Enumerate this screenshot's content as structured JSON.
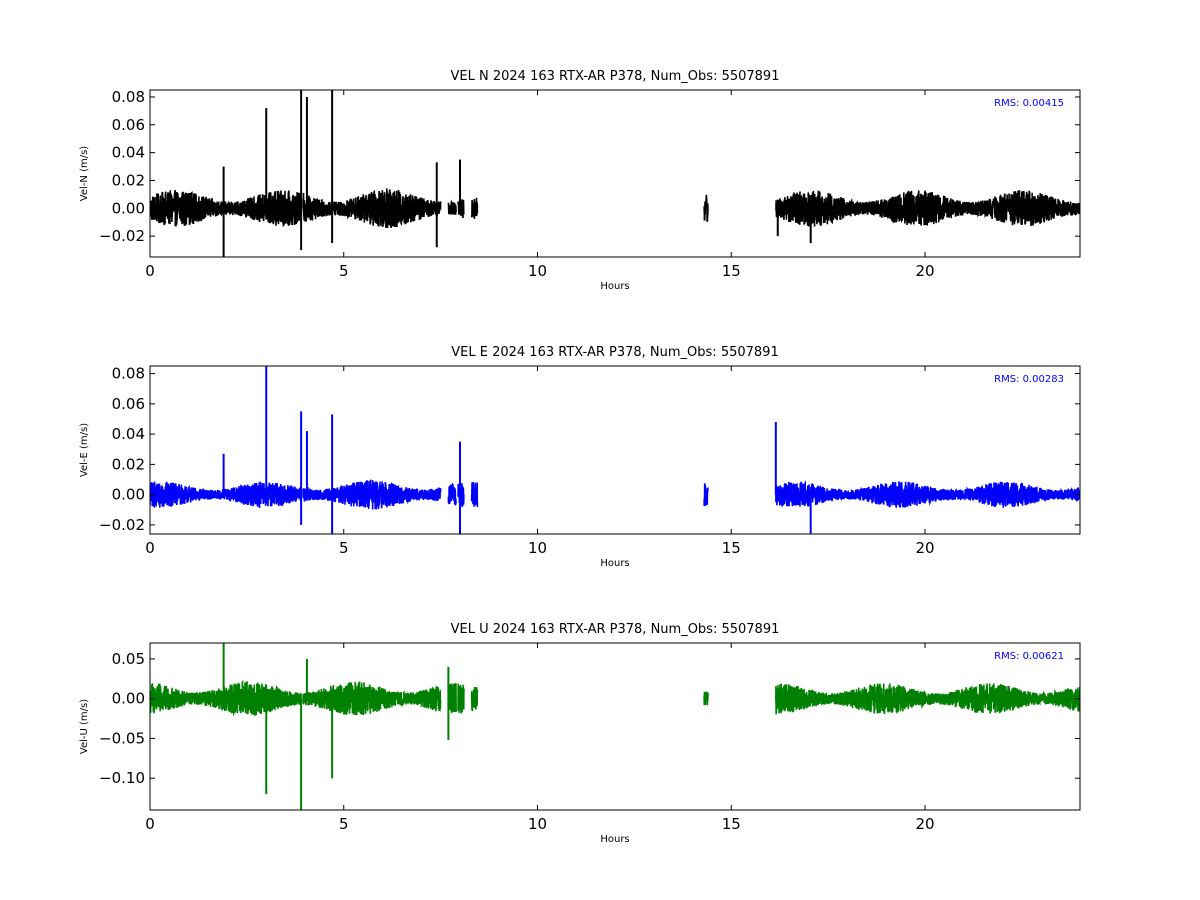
{
  "chart_data": [
    {
      "type": "line",
      "title": "VEL N 2024 163 RTX-AR  P378, Num_Obs: 5507891",
      "xlabel": "Hours",
      "ylabel": "Vel-N (m/s)",
      "xlim": [
        0,
        24
      ],
      "ylim": [
        -0.035,
        0.085
      ],
      "xticks": [
        0,
        5,
        10,
        15,
        20
      ],
      "xtick_labels": [
        "0",
        "5",
        "10",
        "15",
        "20"
      ],
      "yticks": [
        -0.02,
        0.0,
        0.02,
        0.04,
        0.06,
        0.08
      ],
      "ytick_labels": [
        "−0.02",
        "0.00",
        "0.02",
        "0.04",
        "0.06",
        "0.08"
      ],
      "color": "#000000",
      "rms_label": "RMS:  0.00415",
      "grid": false,
      "segments": [
        {
          "start": 0.0,
          "end": 3.9,
          "amp": 0.012
        },
        {
          "start": 3.95,
          "end": 7.5,
          "amp": 0.013
        },
        {
          "start": 7.7,
          "end": 7.9,
          "amp": 0.011
        },
        {
          "start": 7.95,
          "end": 8.1,
          "amp": 0.011
        },
        {
          "start": 8.3,
          "end": 8.45,
          "amp": 0.009
        },
        {
          "start": 14.3,
          "end": 14.4,
          "amp": 0.009
        },
        {
          "start": 16.15,
          "end": 24.0,
          "amp": 0.012
        }
      ],
      "spikes": [
        {
          "x": 1.9,
          "y": 0.03
        },
        {
          "x": 1.9,
          "y": -0.035
        },
        {
          "x": 3.0,
          "y": 0.072
        },
        {
          "x": 3.9,
          "y": 0.085
        },
        {
          "x": 3.9,
          "y": -0.03
        },
        {
          "x": 4.05,
          "y": 0.08
        },
        {
          "x": 4.7,
          "y": 0.085
        },
        {
          "x": 4.7,
          "y": -0.025
        },
        {
          "x": 7.4,
          "y": 0.033
        },
        {
          "x": 7.4,
          "y": -0.028
        },
        {
          "x": 8.0,
          "y": 0.035
        },
        {
          "x": 17.05,
          "y": -0.025
        },
        {
          "x": 16.2,
          "y": -0.02
        }
      ]
    },
    {
      "type": "line",
      "title": "VEL E 2024 163 RTX-AR  P378, Num_Obs: 5507891",
      "xlabel": "Hours",
      "ylabel": "Vel-E (m/s)",
      "xlim": [
        0,
        24
      ],
      "ylim": [
        -0.026,
        0.085
      ],
      "xticks": [
        0,
        5,
        10,
        15,
        20
      ],
      "xtick_labels": [
        "0",
        "5",
        "10",
        "15",
        "20"
      ],
      "yticks": [
        -0.02,
        0.0,
        0.02,
        0.04,
        0.06,
        0.08
      ],
      "ytick_labels": [
        "−0.02",
        "0.00",
        "0.02",
        "0.04",
        "0.06",
        "0.08"
      ],
      "color": "#0000ff",
      "rms_label": "RMS:  0.00283",
      "grid": false,
      "segments": [
        {
          "start": 0.0,
          "end": 3.9,
          "amp": 0.008
        },
        {
          "start": 3.95,
          "end": 7.5,
          "amp": 0.009
        },
        {
          "start": 7.7,
          "end": 7.9,
          "amp": 0.009
        },
        {
          "start": 7.95,
          "end": 8.1,
          "amp": 0.009
        },
        {
          "start": 8.3,
          "end": 8.45,
          "amp": 0.008
        },
        {
          "start": 14.3,
          "end": 14.4,
          "amp": 0.008
        },
        {
          "start": 16.15,
          "end": 24.0,
          "amp": 0.008
        }
      ],
      "spikes": [
        {
          "x": 1.9,
          "y": 0.027
        },
        {
          "x": 3.0,
          "y": 0.085
        },
        {
          "x": 3.9,
          "y": 0.055
        },
        {
          "x": 3.9,
          "y": -0.02
        },
        {
          "x": 4.05,
          "y": 0.042
        },
        {
          "x": 4.7,
          "y": 0.053
        },
        {
          "x": 4.7,
          "y": -0.026
        },
        {
          "x": 8.0,
          "y": 0.035
        },
        {
          "x": 8.0,
          "y": -0.026
        },
        {
          "x": 16.15,
          "y": 0.048
        },
        {
          "x": 17.05,
          "y": -0.026
        }
      ]
    },
    {
      "type": "line",
      "title": "VEL U 2024 163 RTX-AR  P378, Num_Obs: 5507891",
      "xlabel": "Hours",
      "ylabel": "Vel-U (m/s)",
      "xlim": [
        0,
        24
      ],
      "ylim": [
        -0.14,
        0.07
      ],
      "xticks": [
        0,
        5,
        10,
        15,
        20
      ],
      "xtick_labels": [
        "0",
        "5",
        "10",
        "15",
        "20"
      ],
      "yticks": [
        -0.1,
        -0.05,
        0.0,
        0.05
      ],
      "ytick_labels": [
        "−0.10",
        "−0.05",
        "0.00",
        "0.05"
      ],
      "color": "#008000",
      "rms_label": "RMS:  0.00621",
      "grid": false,
      "segments": [
        {
          "start": 0.0,
          "end": 3.9,
          "amp": 0.02
        },
        {
          "start": 3.95,
          "end": 7.5,
          "amp": 0.02
        },
        {
          "start": 7.7,
          "end": 7.9,
          "amp": 0.018
        },
        {
          "start": 7.95,
          "end": 8.1,
          "amp": 0.018
        },
        {
          "start": 8.3,
          "end": 8.45,
          "amp": 0.016
        },
        {
          "start": 14.3,
          "end": 14.4,
          "amp": 0.015
        },
        {
          "start": 16.15,
          "end": 24.0,
          "amp": 0.018
        }
      ],
      "spikes": [
        {
          "x": 1.9,
          "y": 0.07
        },
        {
          "x": 3.0,
          "y": -0.12
        },
        {
          "x": 3.9,
          "y": -0.14
        },
        {
          "x": 4.05,
          "y": 0.05
        },
        {
          "x": 4.7,
          "y": -0.1
        },
        {
          "x": 7.7,
          "y": -0.052
        },
        {
          "x": 7.7,
          "y": 0.04
        }
      ]
    }
  ]
}
